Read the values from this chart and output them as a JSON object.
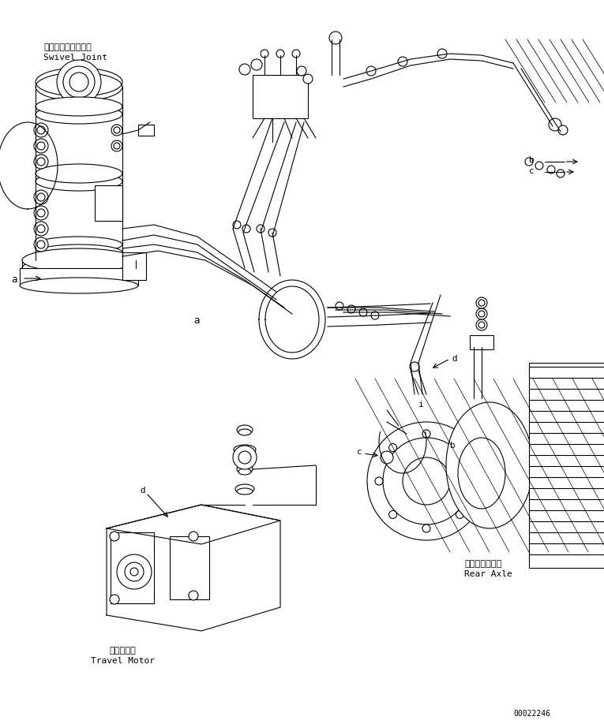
{
  "background_color": "#ffffff",
  "figure_width": 7.65,
  "figure_height": 9.18,
  "dpi": 100,
  "line_color": "#000000",
  "labels": {
    "swivel_joint_jp": "スイベルジョイント",
    "swivel_joint_en": "Swivel Joint",
    "rear_axle_jp": "リヤーアクスル",
    "rear_axle_en": "Rear Axle",
    "travel_motor_jp": "走行モータ",
    "travel_motor_en": "Travel Motor",
    "serial": "00022246"
  }
}
